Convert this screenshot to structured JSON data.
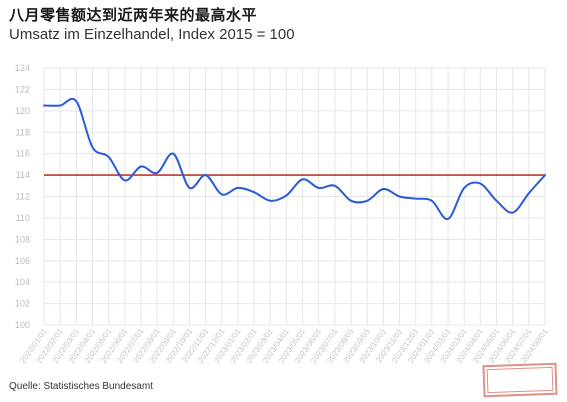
{
  "title": "八月零售额达到近两年来的最高水平",
  "subtitle": "Umsatz im Einzelhandel, Index 2015 = 100",
  "source": "Quelle: Statistisches Bundesamt",
  "colors": {
    "series": "#2a5bd7",
    "reference": "#c0392b",
    "grid": "#e6e6e6"
  },
  "chart_data": {
    "type": "line",
    "title": "八月零售额达到近两年来的最高水平",
    "subtitle": "Umsatz im Einzelhandel, Index 2015 = 100",
    "xlabel": "",
    "ylabel": "",
    "ylim": [
      100,
      124
    ],
    "yticks": [
      100,
      102,
      104,
      106,
      108,
      110,
      112,
      114,
      116,
      118,
      120,
      122,
      124
    ],
    "grid": true,
    "x": [
      "2022/01/01",
      "2022/02/01",
      "2022/03/01",
      "2022/04/01",
      "2022/05/01",
      "2022/06/01",
      "2022/07/01",
      "2022/08/01",
      "2022/09/01",
      "2022/10/01",
      "2022/11/01",
      "2022/12/01",
      "2023/01/01",
      "2023/02/01",
      "2023/03/01",
      "2023/04/01",
      "2023/05/01",
      "2023/06/01",
      "2023/07/01",
      "2023/08/01",
      "2023/09/01",
      "2023/10/01",
      "2023/11/01",
      "2023/12/01",
      "2024/01/01",
      "2024/02/01",
      "2024/03/01",
      "2024/04/01",
      "2024/05/01",
      "2024/06/01",
      "2024/07/01",
      "2024/08/01"
    ],
    "series": [
      {
        "values": [
          120.5,
          120.5,
          120.9,
          116.6,
          115.7,
          113.5,
          114.8,
          114.2,
          116.0,
          112.8,
          114.0,
          112.2,
          112.8,
          112.4,
          111.6,
          112.1,
          113.6,
          112.8,
          113.0,
          111.6,
          111.6,
          112.7,
          112.0,
          111.8,
          111.6,
          109.9,
          112.8,
          113.2,
          111.6,
          110.5,
          112.3,
          114.0
        ]
      }
    ],
    "reference_line": {
      "y": 114.0
    }
  }
}
